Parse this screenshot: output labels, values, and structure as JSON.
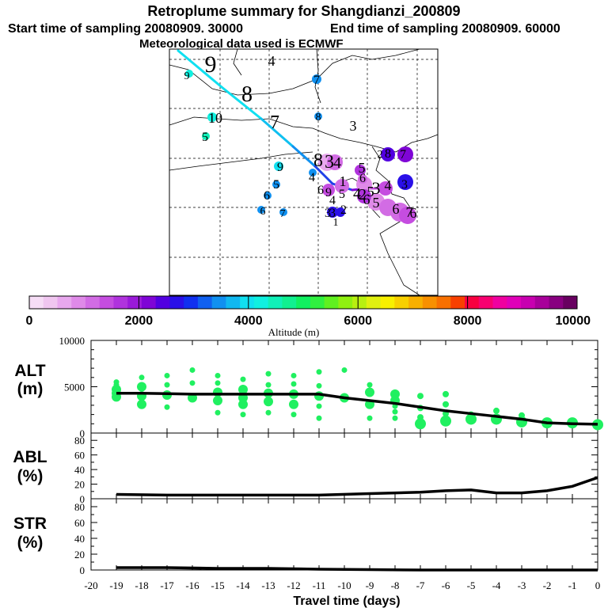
{
  "header": {
    "title": "Retroplume summary for Shangdianzi_200809",
    "start_time": "Start time of sampling 20080909. 30000",
    "end_time": "End time of sampling 20080909. 60000",
    "met_data": "Meteorological data used is ECMWF"
  },
  "colorbar": {
    "tick_labels": [
      "0",
      "2000",
      "4000",
      "6000",
      "8000",
      "10000"
    ],
    "label": "Altitude (m)",
    "colors": [
      "#f6ddf6",
      "#f0c6f0",
      "#e8a8ee",
      "#df8ae8",
      "#d26ce4",
      "#c54de0",
      "#b033dd",
      "#9a1ad9",
      "#7f05d6",
      "#5200e0",
      "#2a10e8",
      "#1030f0",
      "#1060f0",
      "#1090f0",
      "#10b8f0",
      "#10e0f0",
      "#10f0e0",
      "#10f0b8",
      "#10f090",
      "#10f060",
      "#30f040",
      "#60f020",
      "#90f010",
      "#b8f010",
      "#e0f010",
      "#f8f000",
      "#f8d000",
      "#f8b000",
      "#f89000",
      "#f87000",
      "#f84000",
      "#f80040",
      "#f80070",
      "#f000a0",
      "#e000b8",
      "#c800b0",
      "#a8009a",
      "#880080",
      "#680060"
    ]
  },
  "map": {
    "city_labels": [
      "9",
      "4",
      "9",
      "8",
      "7",
      "10",
      "5",
      "3",
      "7",
      "8",
      "8",
      "2",
      "3",
      "7",
      "6",
      "9",
      "4",
      "5",
      "6",
      "7",
      "8",
      "3",
      "4",
      "5",
      "6",
      "1",
      "2",
      "3",
      "4",
      "5",
      "6",
      "7",
      "6",
      "9",
      "4",
      "5",
      "6",
      "3",
      "3",
      "2",
      "1",
      "4",
      "5",
      "6"
    ],
    "trajectory_colors": [
      "#10e0f0",
      "#10c0f0",
      "#1090f0",
      "#2040e8",
      "#7f05d6",
      "#c54de0"
    ]
  },
  "chart_data": [
    {
      "type": "scatter",
      "panel": "ALT",
      "ylabel": "ALT\n(m)",
      "ylabel_line1": "ALT",
      "ylabel_line2": "(m)",
      "ylim": [
        0,
        10000
      ],
      "yticks": [
        "10000",
        "5000",
        "0"
      ],
      "xlim": [
        -20,
        0
      ],
      "median_line": {
        "x": [
          -19,
          -18,
          -17,
          -16,
          -15,
          -14,
          -13,
          -12,
          -11,
          -10,
          -9,
          -8,
          -7,
          -6,
          -5,
          -4,
          -3,
          -2,
          -1,
          0
        ],
        "y": [
          4300,
          4300,
          4250,
          4200,
          4200,
          4200,
          4200,
          4200,
          4200,
          3800,
          3500,
          3200,
          2800,
          2400,
          2100,
          1800,
          1500,
          1100,
          1000,
          950
        ]
      },
      "scatter_points": [
        {
          "x": -19,
          "y": [
            5200,
            4700,
            4300,
            3900,
            5500
          ]
        },
        {
          "x": -18,
          "y": [
            6000,
            5000,
            4000,
            3100
          ]
        },
        {
          "x": -17,
          "y": [
            6200,
            5200,
            4100,
            2800
          ]
        },
        {
          "x": -16,
          "y": [
            6800,
            5400,
            3800
          ]
        },
        {
          "x": -15,
          "y": [
            6200,
            5400,
            4400,
            3500,
            2200
          ]
        },
        {
          "x": -14,
          "y": [
            5800,
            4700,
            3800,
            3100,
            2000
          ]
        },
        {
          "x": -13,
          "y": [
            6400,
            5200,
            4300,
            3400,
            2200
          ]
        },
        {
          "x": -12,
          "y": [
            6200,
            5300,
            4200,
            3100,
            2000
          ]
        },
        {
          "x": -11,
          "y": [
            6600,
            5100,
            4000,
            2900,
            1600
          ]
        },
        {
          "x": -10,
          "y": [
            6800,
            3800
          ]
        },
        {
          "x": -9,
          "y": [
            5200,
            4400,
            3100,
            1600
          ]
        },
        {
          "x": -8,
          "y": [
            4200,
            3500,
            2900,
            2300,
            1600
          ]
        },
        {
          "x": -7,
          "y": [
            4000,
            2700,
            1700,
            1000
          ]
        },
        {
          "x": -6,
          "y": [
            4200,
            3100,
            2100,
            1300
          ]
        },
        {
          "x": -5,
          "y": [
            2000,
            1500
          ]
        },
        {
          "x": -4,
          "y": [
            2400,
            1500
          ]
        },
        {
          "x": -3,
          "y": [
            1900,
            1200
          ]
        },
        {
          "x": -2,
          "y": [
            1100
          ]
        },
        {
          "x": -1,
          "y": [
            1100
          ]
        },
        {
          "x": 0,
          "y": [
            900
          ]
        }
      ],
      "color": "#20f060"
    },
    {
      "type": "line",
      "panel": "ABL",
      "ylabel_line1": "ABL",
      "ylabel_line2": "(%)",
      "ylim": [
        0,
        90
      ],
      "yticks": [
        "80",
        "60",
        "40",
        "20",
        "0"
      ],
      "xlim": [
        -20,
        0
      ],
      "x": [
        -19,
        -17,
        -15,
        -13,
        -11,
        -9,
        -7,
        -6,
        -5,
        -4,
        -3,
        -2,
        -1,
        0
      ],
      "y": [
        6,
        5,
        5,
        5,
        5,
        7,
        9,
        11,
        12,
        8,
        8,
        11,
        17,
        29
      ]
    },
    {
      "type": "line",
      "panel": "STR",
      "ylabel_line1": "STR",
      "ylabel_line2": "(%)",
      "ylim": [
        0,
        90
      ],
      "yticks": [
        "80",
        "60",
        "40",
        "20",
        "0"
      ],
      "xlim": [
        -20,
        0
      ],
      "x": [
        -19,
        -17,
        -15,
        -13,
        -11,
        -9,
        -7,
        -6,
        -5,
        -4,
        -3,
        -2,
        -1,
        0
      ],
      "y": [
        3,
        3,
        2,
        2,
        1,
        0.5,
        0,
        0,
        0,
        0,
        0,
        0,
        0,
        0
      ]
    }
  ],
  "xaxis": {
    "tick_labels": [
      "-20",
      "-19",
      "-18",
      "-17",
      "-16",
      "-15",
      "-14",
      "-13",
      "-12",
      "-11",
      "-10",
      "-9",
      "-8",
      "-7",
      "-6",
      "-5",
      "-4",
      "-3",
      "-2",
      "-1",
      "0"
    ],
    "label": "Travel time (days)"
  }
}
